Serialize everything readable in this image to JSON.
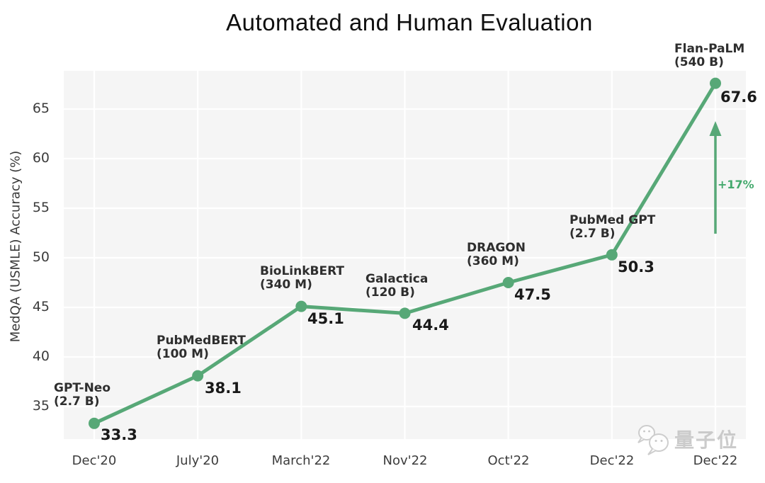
{
  "title": "Automated and Human Evaluation",
  "watermark": {
    "icon": "wechat-chat-bubbles-icon",
    "text": "量子位"
  },
  "chart_data": {
    "type": "line",
    "title": "Automated and Human Evaluation",
    "xlabel": "",
    "ylabel": "MedQA (USMLE) Accuracy (%)",
    "categories": [
      "Dec'20",
      "July'20",
      "March'22",
      "Nov'22",
      "Oct'22",
      "Dec'22",
      "Dec'22"
    ],
    "yticks": [
      35,
      40,
      45,
      50,
      55,
      60,
      65
    ],
    "ylim": [
      31.7,
      68.9
    ],
    "grid": true,
    "legend": "none",
    "series": [
      {
        "name": "MedQA (USMLE) Accuracy",
        "values": [
          33.3,
          38.1,
          45.1,
          44.4,
          47.5,
          50.3,
          67.6
        ]
      }
    ],
    "points": [
      {
        "model": "GPT-Neo",
        "params": "(2.7 B)",
        "date": "Dec'20",
        "value": 33.3
      },
      {
        "model": "PubMedBERT",
        "params": "(100 M)",
        "date": "July'20",
        "value": 38.1
      },
      {
        "model": "BioLinkBERT",
        "params": "(340 M)",
        "date": "March'22",
        "value": 45.1
      },
      {
        "model": "Galactica",
        "params": "(120 B)",
        "date": "Nov'22",
        "value": 44.4
      },
      {
        "model": "DRAGON",
        "params": "(360 M)",
        "date": "Oct'22",
        "value": 47.5
      },
      {
        "model": "PubMed GPT",
        "params": "(2.7 B)",
        "date": "Dec'22",
        "value": 50.3
      },
      {
        "model": "Flan-PaLM",
        "params": "(540 B)",
        "date": "Dec'22",
        "value": 67.6
      }
    ],
    "annotation": {
      "text": "+17%"
    },
    "colors": {
      "line": "#57a877",
      "marker": "#57a877",
      "annotation": "#44a96d",
      "plot_bg": "#f5f5f5",
      "grid": "#ffffff",
      "title": "#0f0f0f",
      "watermark": "#c3c3c3"
    }
  }
}
